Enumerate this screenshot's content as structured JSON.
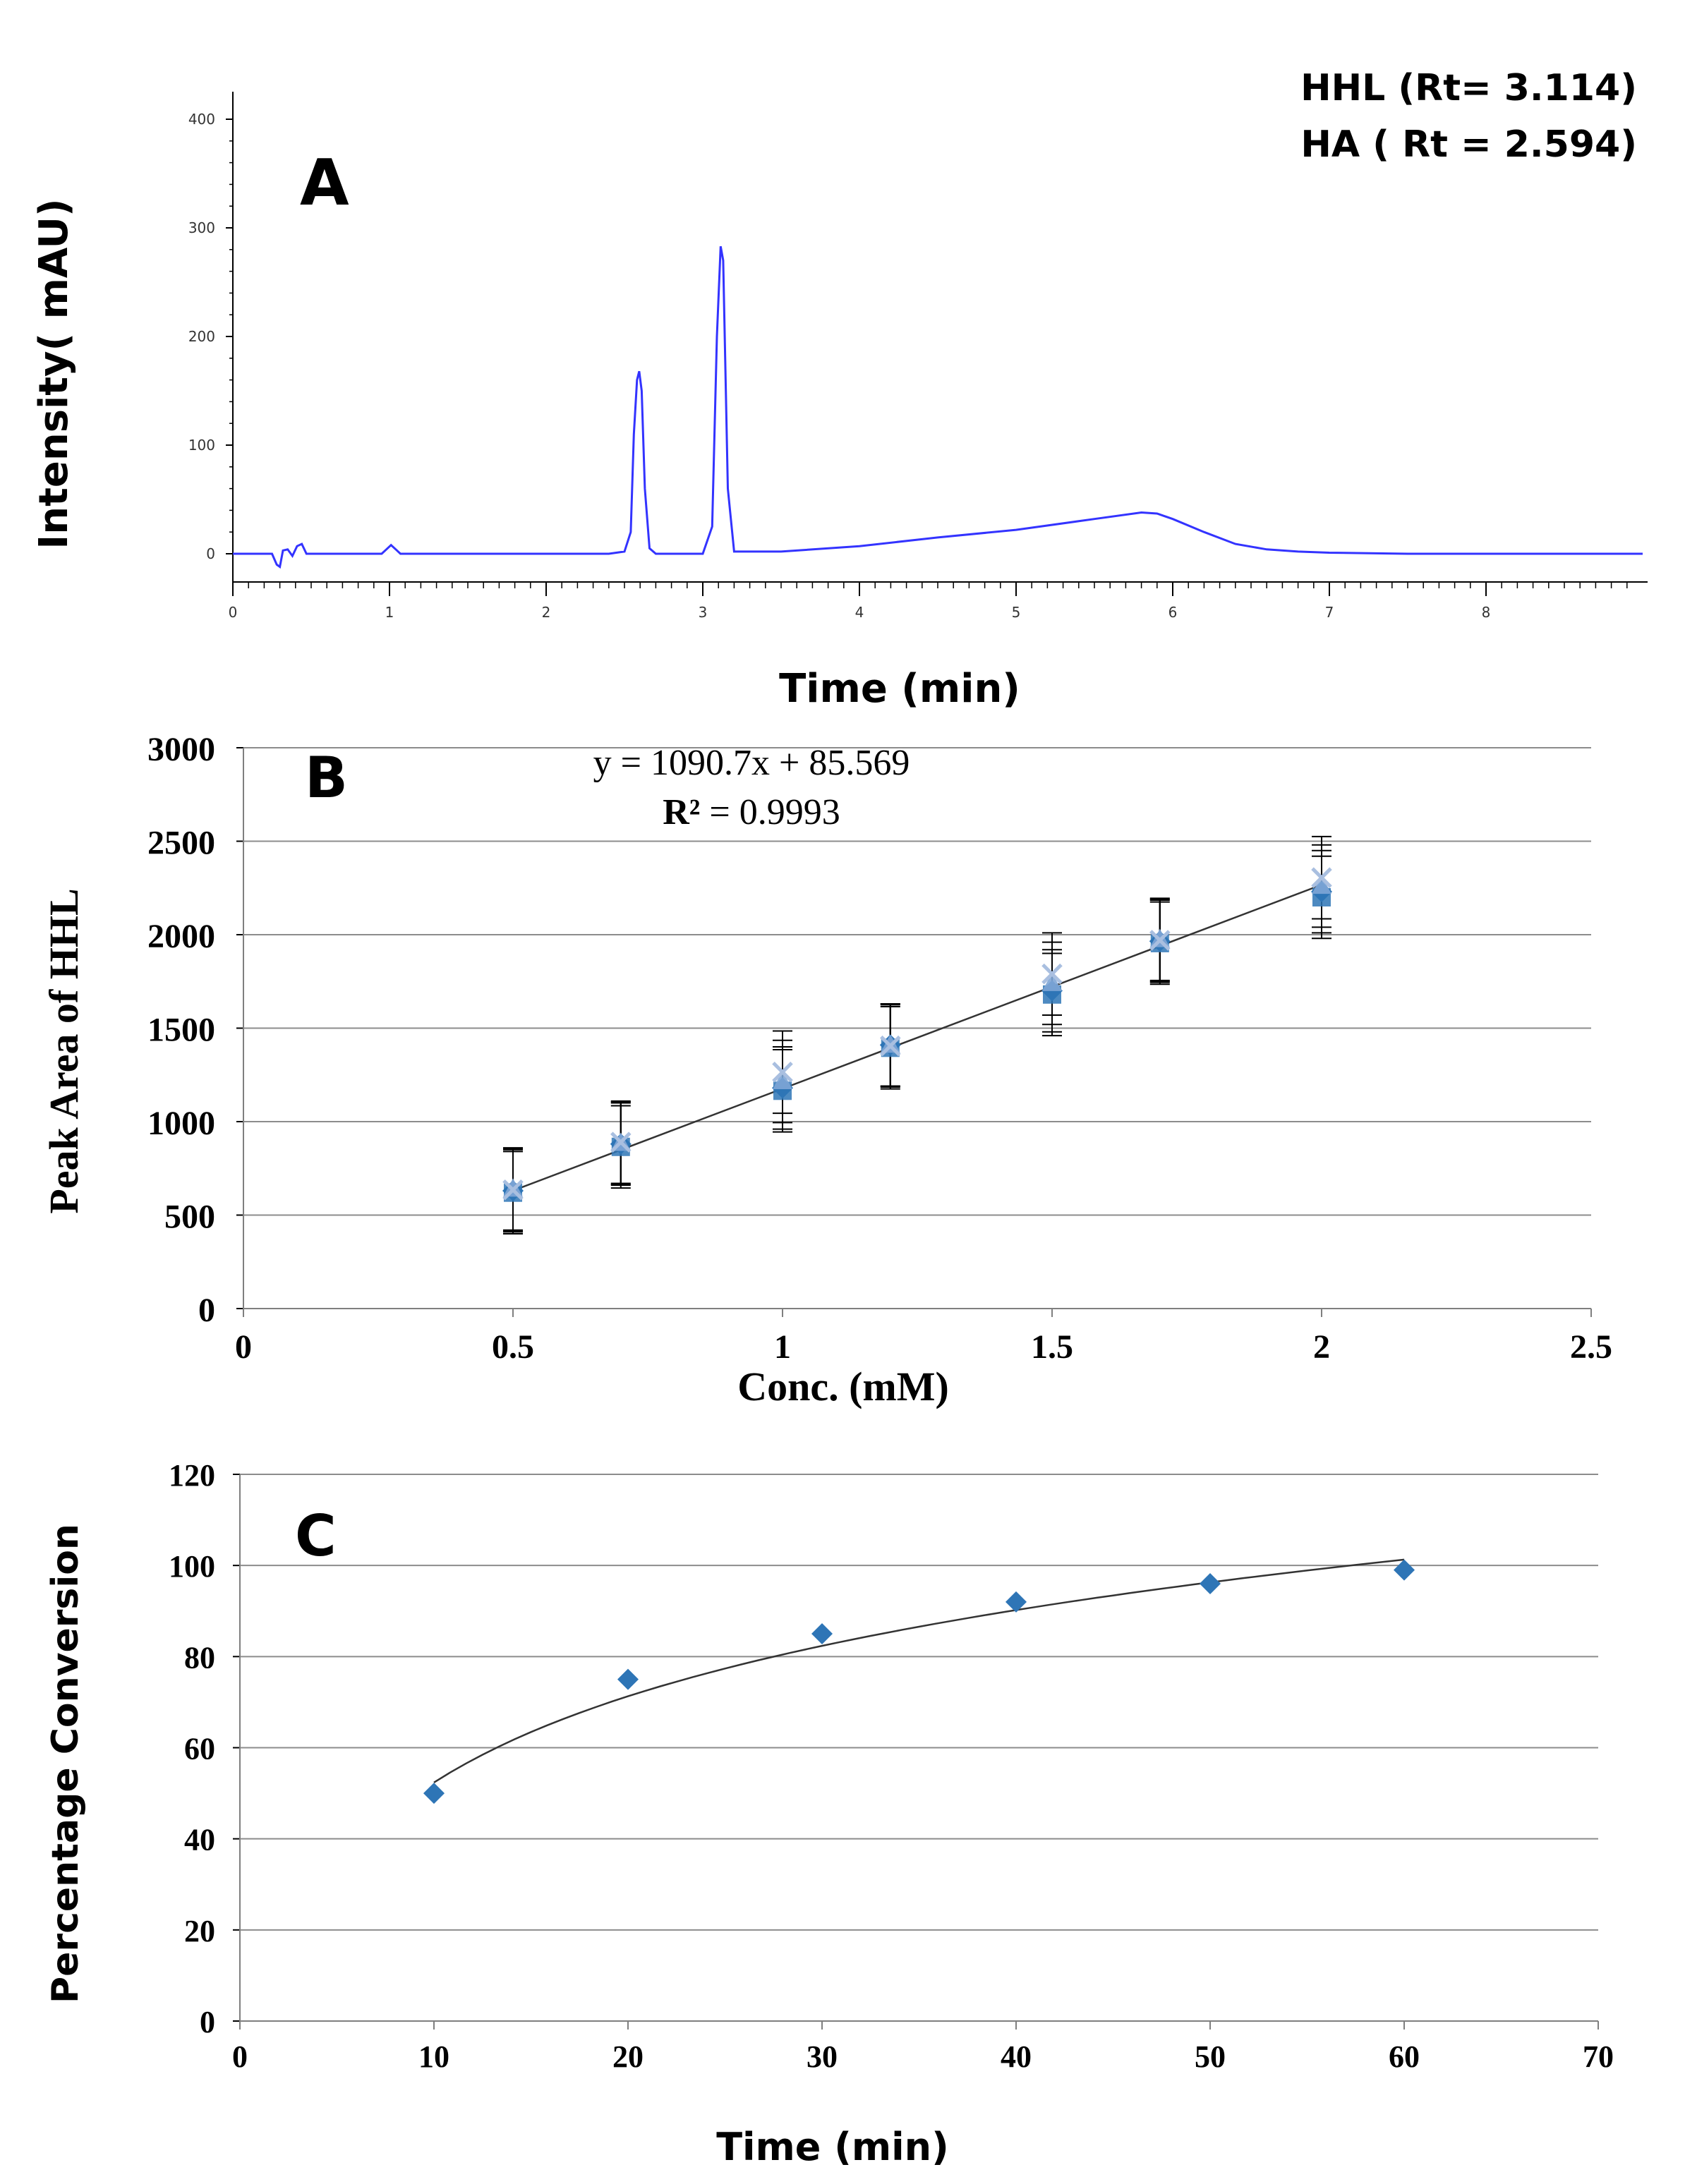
{
  "chart_data": [
    {
      "panel": "A",
      "type": "line",
      "title": "",
      "xlabel": "Time (min)",
      "ylabel": "Intensity( mAU)",
      "xlim": [
        0,
        9
      ],
      "ylim": [
        -20,
        410
      ],
      "x_ticks": [
        "0",
        "1",
        "2",
        "3",
        "4",
        "5",
        "6",
        "7",
        "8"
      ],
      "y_ticks": [
        "0",
        "100",
        "200",
        "300",
        "400"
      ],
      "annotations": [
        "HHL (Rt= 3.114)",
        "HA ( Rt = 2.594)"
      ],
      "line_color": "#3333ff",
      "series": [
        {
          "name": "chromatogram",
          "x": [
            0,
            0.25,
            0.28,
            0.3,
            0.32,
            0.35,
            0.38,
            0.41,
            0.44,
            0.47,
            0.5,
            0.95,
            0.98,
            1.01,
            1.04,
            1.07,
            1.1,
            2.4,
            2.5,
            2.54,
            2.56,
            2.58,
            2.594,
            2.61,
            2.63,
            2.66,
            2.7,
            3.0,
            3.06,
            3.09,
            3.114,
            3.13,
            3.16,
            3.2,
            3.5,
            4.0,
            4.5,
            5.0,
            5.5,
            5.8,
            5.9,
            6.0,
            6.2,
            6.4,
            6.6,
            6.8,
            7.0,
            7.5,
            8.0,
            9.0
          ],
          "y": [
            0,
            0,
            -10,
            -12,
            3,
            4,
            -2,
            7,
            9,
            0,
            0,
            0,
            4,
            8,
            4,
            0,
            0,
            0,
            2,
            20,
            110,
            160,
            168,
            150,
            60,
            5,
            0,
            0,
            25,
            200,
            283,
            270,
            60,
            2,
            2,
            7,
            15,
            22,
            32,
            38,
            37,
            32,
            20,
            9,
            4,
            2,
            1,
            0,
            0,
            0
          ]
        }
      ]
    },
    {
      "panel": "B",
      "type": "scatter",
      "title": "",
      "xlabel": "Conc. (mM)",
      "ylabel": "Peak Area of HHL",
      "xlim": [
        0,
        2.5
      ],
      "ylim": [
        0,
        3000
      ],
      "x_ticks": [
        "0",
        "0.5",
        "1",
        "1.5",
        "2",
        "2.5"
      ],
      "y_ticks": [
        "0",
        "500",
        "1000",
        "1500",
        "2000",
        "2500",
        "3000"
      ],
      "equation": "y = 1090.7x + 85.569",
      "r2_label": "R²",
      "r2_value": " = 0.9993",
      "marker_color": "#2e75b6",
      "trendline": {
        "slope": 1090.7,
        "intercept": 85.569,
        "x_range": [
          0.5,
          2
        ]
      },
      "x": [
        0.5,
        0.7,
        1,
        1.2,
        1.5,
        1.7,
        2
      ],
      "series": [
        {
          "name": "Series 1",
          "marker": "diamond",
          "values": [
            630,
            880,
            1180,
            1410,
            1700,
            1965,
            2230
          ]
        },
        {
          "name": "Series 2",
          "marker": "square",
          "values": [
            620,
            865,
            1165,
            1395,
            1680,
            1955,
            2200
          ]
        },
        {
          "name": "Series 3",
          "marker": "triangle",
          "values": [
            640,
            885,
            1215,
            1410,
            1740,
            1975,
            2260
          ]
        },
        {
          "name": "Series 4",
          "marker": "x",
          "values": [
            635,
            890,
            1265,
            1405,
            1790,
            1970,
            2305
          ]
        }
      ],
      "error_bar": 220
    },
    {
      "panel": "C",
      "type": "scatter",
      "title": "",
      "xlabel": "Time (min)",
      "ylabel": "Percentage Conversion",
      "xlim": [
        0,
        70
      ],
      "ylim": [
        0,
        120
      ],
      "x_ticks": [
        "0",
        "10",
        "20",
        "30",
        "40",
        "50",
        "60",
        "70"
      ],
      "y_ticks": [
        "0",
        "20",
        "40",
        "60",
        "80",
        "100",
        "120"
      ],
      "marker_color": "#2e75b6",
      "trendline": {
        "type": "logarithmic",
        "a": 27.3,
        "b": -10.5,
        "x_range": [
          10,
          60
        ]
      },
      "x": [
        10,
        20,
        30,
        40,
        50,
        60
      ],
      "values": [
        50,
        75,
        85,
        92,
        96,
        99
      ]
    }
  ],
  "panel_labels": {
    "a": "A",
    "b": "B",
    "c": "C"
  }
}
